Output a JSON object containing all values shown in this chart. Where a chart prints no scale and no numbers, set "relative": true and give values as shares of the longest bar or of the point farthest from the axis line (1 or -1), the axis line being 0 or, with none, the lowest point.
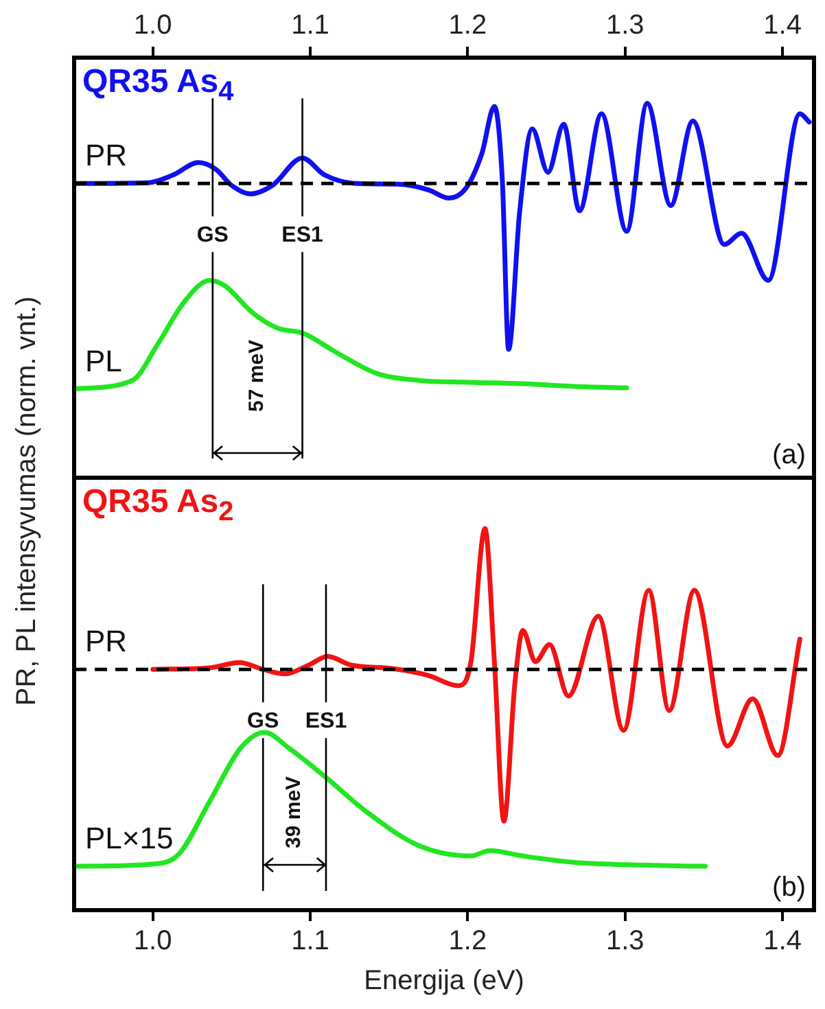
{
  "chart_data": [
    {
      "type": "line",
      "title": "QR35 As$_{4}$",
      "ylabel": "PR, PL intensyvumas (norm. vnt.)",
      "relative": true,
      "xlim": [
        0.95,
        1.42
      ],
      "x2lim": [
        0.95,
        1.42
      ],
      "x2ticks": [
        {
          "value": 1,
          "label": "1.0"
        },
        1.1,
        1.2,
        1.3,
        1.4
      ],
      "tick_labels": false,
      "legend": false,
      "marker": "none",
      "line_style": "solid",
      "series": [
        {
          "name": "PR",
          "color": "#1010f0",
          "x": [
            0.95,
            0.997,
            1.013,
            1.029,
            1.04,
            1.05,
            1.062,
            1.076,
            1.095,
            1.109,
            1.129,
            1.156,
            1.175,
            1.188,
            1.199,
            1.209,
            1.217,
            1.222,
            1.226,
            1.233,
            1.241,
            1.251,
            1.261,
            1.271,
            1.285,
            1.301,
            1.314,
            1.329,
            1.343,
            1.363,
            1.374,
            1.391,
            1.411,
            1.417
          ],
          "values": [
            0.786,
            0.788,
            0.809,
            0.842,
            0.824,
            0.781,
            0.758,
            0.781,
            0.854,
            0.809,
            0.786,
            0.784,
            0.769,
            0.747,
            0.774,
            0.866,
            0.992,
            0.795,
            0.343,
            0.71,
            0.932,
            0.816,
            0.944,
            0.713,
            0.972,
            0.658,
            1,
            0.727,
            0.953,
            0.623,
            0.653,
            0.527,
            0.972,
            0.95
          ]
        },
        {
          "name": "PL",
          "color": "#22e622",
          "x": [
            0.95,
            0.987,
            1.003,
            1.02,
            1.036,
            1.046,
            1.063,
            1.079,
            1.096,
            1.116,
            1.142,
            1.169,
            1.202,
            1.235,
            1.268,
            1.301
          ],
          "values": [
            0.237,
            0.26,
            0.356,
            0.47,
            0.527,
            0.512,
            0.442,
            0.4,
            0.385,
            0.336,
            0.279,
            0.26,
            0.255,
            0.251,
            0.244,
            0.24
          ]
        }
      ],
      "ref_lines": [
        {
          "axis": "y",
          "value": 0.786,
          "color": "#000000",
          "line_style": "dashed"
        },
        {
          "axis": "x",
          "value": 1.038,
          "label": "GS",
          "color": "#000000"
        },
        {
          "axis": "x",
          "value": 1.095,
          "label": "ES1",
          "color": "#000000"
        }
      ],
      "annotations": [
        "57 meV",
        "(a)"
      ]
    },
    {
      "type": "line",
      "title": "QR35 As$_{2}$",
      "xlabel": "Energija (eV)",
      "relative": true,
      "xlim": [
        0.95,
        1.42
      ],
      "xticks": [
        {
          "value": 1,
          "label": "1.0"
        },
        1.1,
        1.2,
        1.3,
        1.4
      ],
      "tick_labels": "x",
      "legend": false,
      "marker": "none",
      "line_style": "solid",
      "series": [
        {
          "name": "PR",
          "color": "#f01414",
          "x": [
            1.0,
            1.036,
            1.055,
            1.07,
            1.084,
            1.099,
            1.111,
            1.126,
            1.152,
            1.175,
            1.194,
            1.202,
            1.211,
            1.217,
            1.223,
            1.23,
            1.235,
            1.243,
            1.252,
            1.264,
            1.283,
            1.299,
            1.315,
            1.328,
            1.344,
            1.365,
            1.381,
            1.397,
            1.411
          ],
          "values": [
            0.631,
            0.635,
            0.649,
            0.631,
            0.619,
            0.642,
            0.665,
            0.642,
            0.633,
            0.615,
            0.588,
            0.649,
            1,
            0.649,
            0.233,
            0.595,
            0.733,
            0.651,
            0.696,
            0.561,
            0.77,
            0.471,
            0.838,
            0.523,
            0.838,
            0.43,
            0.554,
            0.405,
            0.71
          ]
        },
        {
          "name": "PL×15",
          "color": "#22e622",
          "x": [
            0.952,
            1.003,
            1.017,
            1.036,
            1.056,
            1.071,
            1.086,
            1.109,
            1.136,
            1.169,
            1.202,
            1.214,
            1.235,
            1.268,
            1.301,
            1.351
          ],
          "values": [
            0.115,
            0.122,
            0.149,
            0.284,
            0.426,
            0.466,
            0.426,
            0.351,
            0.257,
            0.169,
            0.142,
            0.156,
            0.142,
            0.125,
            0.119,
            0.115
          ]
        }
      ],
      "ref_lines": [
        {
          "axis": "y",
          "value": 0.631,
          "color": "#000000",
          "line_style": "dashed"
        },
        {
          "axis": "x",
          "value": 1.07,
          "label": "GS",
          "color": "#000000"
        },
        {
          "axis": "x",
          "value": 1.11,
          "label": "ES1",
          "color": "#000000"
        }
      ],
      "annotations": [
        "39 meV",
        "(b)"
      ]
    }
  ]
}
